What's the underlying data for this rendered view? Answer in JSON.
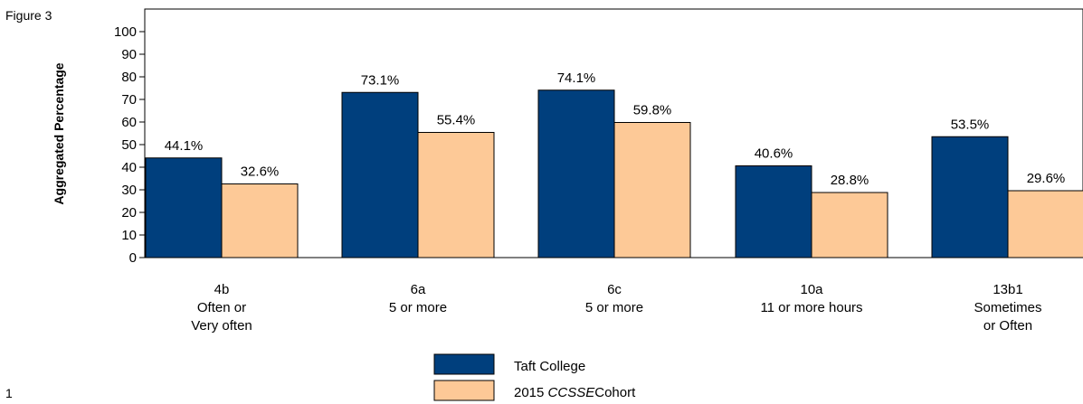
{
  "figure_label": "Figure 3",
  "page_number": "1",
  "colors": {
    "taft": "#003f7d",
    "cohort": "#fdc997",
    "outline": "#000000"
  },
  "chart_data": {
    "type": "bar",
    "title": "",
    "ylabel": "Aggregated Percentage",
    "xlabel": "",
    "ylim": [
      0,
      100
    ],
    "yticks": [
      0,
      10,
      20,
      30,
      40,
      50,
      60,
      70,
      80,
      90,
      100
    ],
    "grid": false,
    "legend_position": "bottom-center",
    "categories": [
      [
        "4b",
        "Often or",
        "Very often"
      ],
      [
        "6a",
        "5 or more"
      ],
      [
        "6c",
        "5 or more"
      ],
      [
        "10a",
        "11 or more hours"
      ],
      [
        "13b1",
        "Sometimes",
        "or Often"
      ]
    ],
    "series": [
      {
        "name": "Taft College",
        "values": [
          44.1,
          73.1,
          74.1,
          40.6,
          53.5
        ],
        "labels": [
          "44.1%",
          "73.1%",
          "74.1%",
          "40.6%",
          "53.5%"
        ]
      },
      {
        "name_prefix": "2015 ",
        "name_italic": "CCSSE",
        "name_suffix": "Cohort",
        "values": [
          32.6,
          55.4,
          59.8,
          28.8,
          29.6
        ],
        "labels": [
          "32.6%",
          "55.4%",
          "59.8%",
          "28.8%",
          "29.6%"
        ]
      }
    ]
  }
}
